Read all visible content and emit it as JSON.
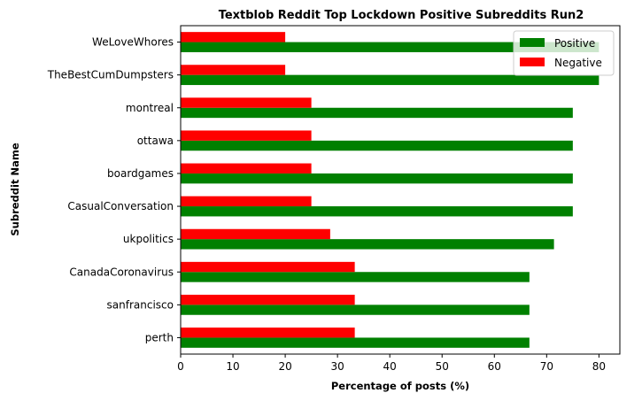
{
  "chart_data": {
    "type": "bar",
    "orientation": "horizontal",
    "title": "Textblob Reddit Top Lockdown Positive Subreddits Run2",
    "xlabel": "Percentage of posts (%)",
    "ylabel": "Subreddit Name",
    "categories": [
      "perth",
      "sanfrancisco",
      "CanadaCoronavirus",
      "ukpolitics",
      "CasualConversation",
      "boardgames",
      "ottawa",
      "montreal",
      "TheBestCumDumpsters",
      "WeLoveWhores"
    ],
    "series": [
      {
        "name": "Positive",
        "color": "#008000",
        "values": [
          66.7,
          66.7,
          66.7,
          71.4,
          75,
          75,
          75,
          75,
          80,
          80
        ]
      },
      {
        "name": "Negative",
        "color": "#ff0000",
        "values": [
          33.3,
          33.3,
          33.3,
          28.6,
          25,
          25,
          25,
          25,
          20,
          20
        ]
      }
    ],
    "xlim": [
      0,
      84
    ],
    "xticks": [
      0,
      10,
      20,
      30,
      40,
      50,
      60,
      70,
      80
    ],
    "grid": false,
    "legend_position": "top-right"
  }
}
